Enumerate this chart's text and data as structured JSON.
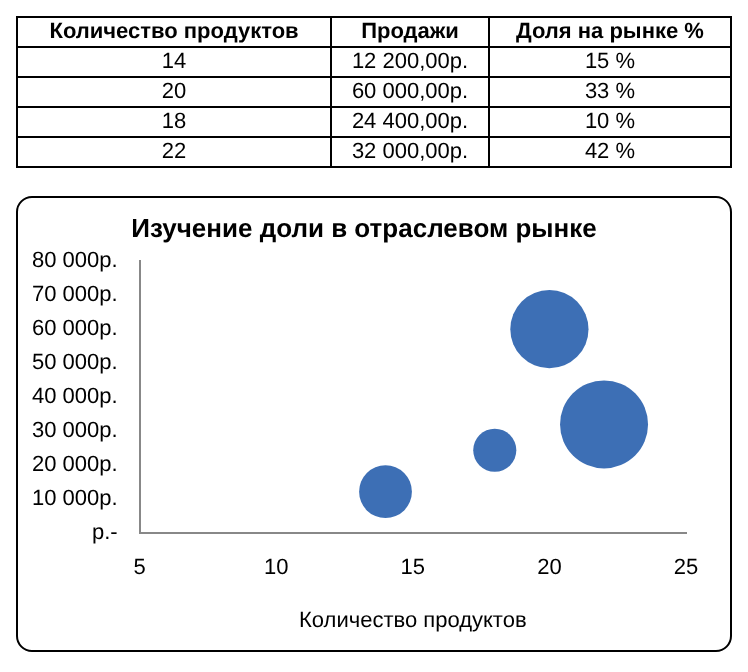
{
  "chart_data": [
    {
      "type": "other",
      "annotations": [
        "Количество продуктов",
        "Продажи",
        "Доля на рынке %",
        "14",
        "12 200,00р.",
        "15 %",
        "20",
        "60 000,00р.",
        "33 %",
        "18",
        "24 400,00р.",
        "10 %",
        "22",
        "32 000,00р.",
        "42 %"
      ]
    },
    {
      "type": "bubble",
      "title": "Изучение доли в отраслевом рынке",
      "xlabel": "Количество продуктов",
      "x": [
        14,
        20,
        18,
        22
      ],
      "values": [
        12200,
        60000,
        24400,
        32000
      ],
      "sizes": [
        0.36,
        0.79,
        0.24,
        1
      ],
      "color": "#3d6fb5",
      "xlim": [
        5,
        25
      ],
      "xticks": [
        5,
        10,
        15,
        20,
        25
      ],
      "ylim": [
        0,
        80000
      ],
      "yticks": [
        {
          "value": 0,
          "label": "р.-"
        },
        {
          "value": 10000,
          "label": "10 000р."
        },
        {
          "value": 20000,
          "label": "20 000р."
        },
        {
          "value": 30000,
          "label": "30 000р."
        },
        {
          "value": 40000,
          "label": "40 000р."
        },
        {
          "value": 50000,
          "label": "50 000р."
        },
        {
          "value": 60000,
          "label": "60 000р."
        },
        {
          "value": 70000,
          "label": "70 000р."
        },
        {
          "value": 80000,
          "label": "80 000р."
        }
      ],
      "grid": false,
      "legend": false
    }
  ]
}
